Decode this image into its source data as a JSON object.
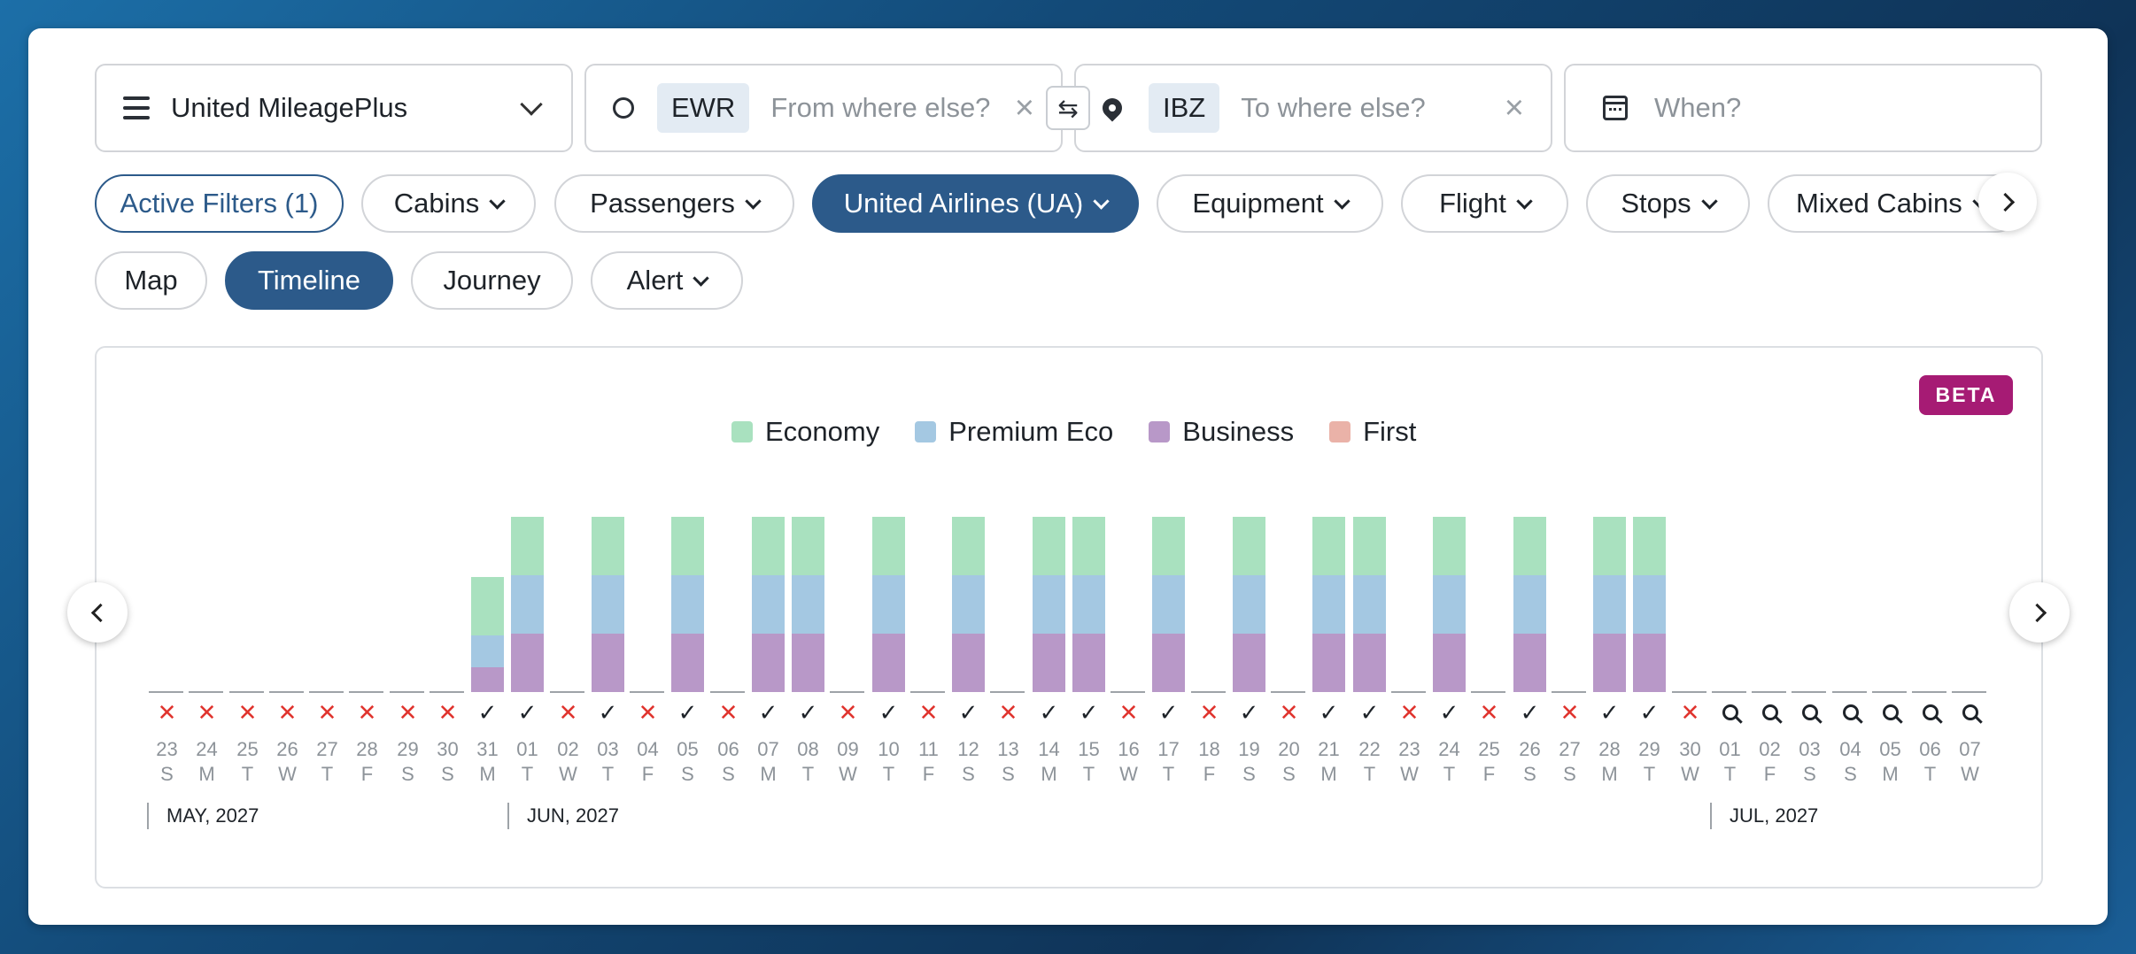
{
  "search": {
    "program": "United MileagePlus",
    "origin_code": "EWR",
    "origin_placeholder": "From where else?",
    "dest_code": "IBZ",
    "dest_placeholder": "To where else?",
    "when_placeholder": "When?",
    "swap_glyph": "⇆",
    "clear_glyph": "×"
  },
  "filters": {
    "active": "Active Filters (1)",
    "cabins": "Cabins",
    "passengers": "Passengers",
    "airline": "United Airlines (UA)",
    "equipment": "Equipment",
    "flight": "Flight",
    "stops": "Stops",
    "mixed_cabins": "Mixed Cabins"
  },
  "views": {
    "map": "Map",
    "timeline": "Timeline",
    "journey": "Journey",
    "alert": "Alert",
    "selected": "Timeline"
  },
  "badge": "BETA",
  "legend": [
    {
      "label": "Economy",
      "color": "#a9e1bf"
    },
    {
      "label": "Premium Eco",
      "color": "#a4c8e2"
    },
    {
      "label": "Business",
      "color": "#b898c8"
    },
    {
      "label": "First",
      "color": "#eab2a8"
    }
  ],
  "months": [
    {
      "label": "MAY, 2027",
      "start_index": 0
    },
    {
      "label": "JUN, 2027",
      "start_index": 9
    },
    {
      "label": "JUL, 2027",
      "start_index": 39
    }
  ],
  "days": [
    {
      "d": "23",
      "w": "S",
      "s": "x",
      "c": []
    },
    {
      "d": "24",
      "w": "M",
      "s": "x",
      "c": []
    },
    {
      "d": "25",
      "w": "T",
      "s": "x",
      "c": []
    },
    {
      "d": "26",
      "w": "W",
      "s": "x",
      "c": []
    },
    {
      "d": "27",
      "w": "T",
      "s": "x",
      "c": []
    },
    {
      "d": "28",
      "w": "F",
      "s": "x",
      "c": []
    },
    {
      "d": "29",
      "w": "S",
      "s": "x",
      "c": []
    },
    {
      "d": "30",
      "w": "S",
      "s": "x",
      "c": []
    },
    {
      "d": "31",
      "w": "M",
      "s": "ok",
      "c": [
        "b",
        "p",
        "e"
      ],
      "partial": true
    },
    {
      "d": "01",
      "w": "T",
      "s": "ok",
      "c": [
        "b",
        "p",
        "e"
      ]
    },
    {
      "d": "02",
      "w": "W",
      "s": "x",
      "c": []
    },
    {
      "d": "03",
      "w": "T",
      "s": "ok",
      "c": [
        "b",
        "p",
        "e"
      ]
    },
    {
      "d": "04",
      "w": "F",
      "s": "x",
      "c": []
    },
    {
      "d": "05",
      "w": "S",
      "s": "ok",
      "c": [
        "b",
        "p",
        "e"
      ]
    },
    {
      "d": "06",
      "w": "S",
      "s": "x",
      "c": []
    },
    {
      "d": "07",
      "w": "M",
      "s": "ok",
      "c": [
        "b",
        "p",
        "e"
      ]
    },
    {
      "d": "08",
      "w": "T",
      "s": "ok",
      "c": [
        "b",
        "p",
        "e"
      ]
    },
    {
      "d": "09",
      "w": "W",
      "s": "x",
      "c": []
    },
    {
      "d": "10",
      "w": "T",
      "s": "ok",
      "c": [
        "b",
        "p",
        "e"
      ]
    },
    {
      "d": "11",
      "w": "F",
      "s": "x",
      "c": []
    },
    {
      "d": "12",
      "w": "S",
      "s": "ok",
      "c": [
        "b",
        "p",
        "e"
      ]
    },
    {
      "d": "13",
      "w": "S",
      "s": "x",
      "c": []
    },
    {
      "d": "14",
      "w": "M",
      "s": "ok",
      "c": [
        "b",
        "p",
        "e"
      ]
    },
    {
      "d": "15",
      "w": "T",
      "s": "ok",
      "c": [
        "b",
        "p",
        "e"
      ]
    },
    {
      "d": "16",
      "w": "W",
      "s": "x",
      "c": []
    },
    {
      "d": "17",
      "w": "T",
      "s": "ok",
      "c": [
        "b",
        "p",
        "e"
      ]
    },
    {
      "d": "18",
      "w": "F",
      "s": "x",
      "c": []
    },
    {
      "d": "19",
      "w": "S",
      "s": "ok",
      "c": [
        "b",
        "p",
        "e"
      ]
    },
    {
      "d": "20",
      "w": "S",
      "s": "x",
      "c": []
    },
    {
      "d": "21",
      "w": "M",
      "s": "ok",
      "c": [
        "b",
        "p",
        "e"
      ]
    },
    {
      "d": "22",
      "w": "T",
      "s": "ok",
      "c": [
        "b",
        "p",
        "e"
      ]
    },
    {
      "d": "23",
      "w": "W",
      "s": "x",
      "c": []
    },
    {
      "d": "24",
      "w": "T",
      "s": "ok",
      "c": [
        "b",
        "p",
        "e"
      ]
    },
    {
      "d": "25",
      "w": "F",
      "s": "x",
      "c": []
    },
    {
      "d": "26",
      "w": "S",
      "s": "ok",
      "c": [
        "b",
        "p",
        "e"
      ]
    },
    {
      "d": "27",
      "w": "S",
      "s": "x",
      "c": []
    },
    {
      "d": "28",
      "w": "M",
      "s": "ok",
      "c": [
        "b",
        "p",
        "e"
      ]
    },
    {
      "d": "29",
      "w": "T",
      "s": "ok",
      "c": [
        "b",
        "p",
        "e"
      ]
    },
    {
      "d": "30",
      "w": "W",
      "s": "x",
      "c": []
    },
    {
      "d": "01",
      "w": "T",
      "s": "q",
      "c": []
    },
    {
      "d": "02",
      "w": "F",
      "s": "q",
      "c": []
    },
    {
      "d": "03",
      "w": "S",
      "s": "q",
      "c": []
    },
    {
      "d": "04",
      "w": "S",
      "s": "q",
      "c": []
    },
    {
      "d": "05",
      "w": "M",
      "s": "q",
      "c": []
    },
    {
      "d": "06",
      "w": "T",
      "s": "q",
      "c": []
    },
    {
      "d": "07",
      "w": "W",
      "s": "q",
      "c": []
    }
  ]
}
